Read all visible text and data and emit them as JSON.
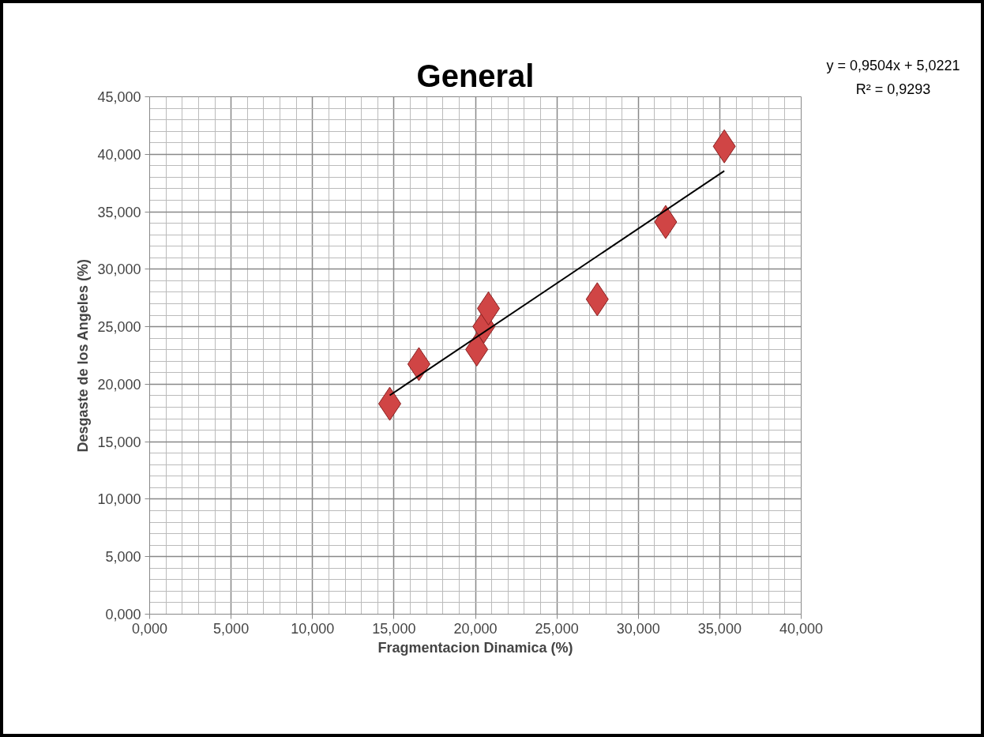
{
  "chart_data": {
    "type": "scatter",
    "title": "General",
    "xlabel": "Fragmentacion Dinamica (%)",
    "ylabel": "Desgaste de los Angeles (%)",
    "annotations": [
      "y = 0,9504x + 5,0221",
      "R² = 0,9293"
    ],
    "series": [
      {
        "type": "scatter",
        "color": "#d04545",
        "marker": "diamond",
        "x": [
          14.74,
          16.53,
          20.08,
          20.52,
          20.8,
          27.48,
          31.68,
          35.28
        ],
        "values": [
          18.3,
          21.75,
          23.02,
          25.02,
          26.59,
          27.39,
          34.11,
          40.69
        ]
      },
      {
        "type": "line",
        "color": "#000000",
        "marker": "none",
        "line_style": "solid",
        "x": [
          14.74,
          35.28
        ],
        "values": [
          19.03,
          38.55
        ]
      }
    ],
    "xlim": [
      0,
      40
    ],
    "ylim": [
      0,
      45
    ],
    "xticks": [
      {
        "value": 0,
        "label": "0,000"
      },
      {
        "value": 5,
        "label": "5,000"
      },
      {
        "value": 10,
        "label": "10,000"
      },
      {
        "value": 15,
        "label": "15,000"
      },
      {
        "value": 20,
        "label": "20,000"
      },
      {
        "value": 25,
        "label": "25,000"
      },
      {
        "value": 30,
        "label": "30,000"
      },
      {
        "value": 35,
        "label": "35,000"
      },
      {
        "value": 40,
        "label": "40,000"
      }
    ],
    "yticks": [
      {
        "value": 0,
        "label": "0,000"
      },
      {
        "value": 5,
        "label": "5,000"
      },
      {
        "value": 10,
        "label": "10,000"
      },
      {
        "value": 15,
        "label": "15,000"
      },
      {
        "value": 20,
        "label": "20,000"
      },
      {
        "value": 25,
        "label": "25,000"
      },
      {
        "value": 30,
        "label": "30,000"
      },
      {
        "value": 35,
        "label": "35,000"
      },
      {
        "value": 40,
        "label": "40,000"
      },
      {
        "value": 45,
        "label": "45,000"
      }
    ],
    "grid": true
  }
}
